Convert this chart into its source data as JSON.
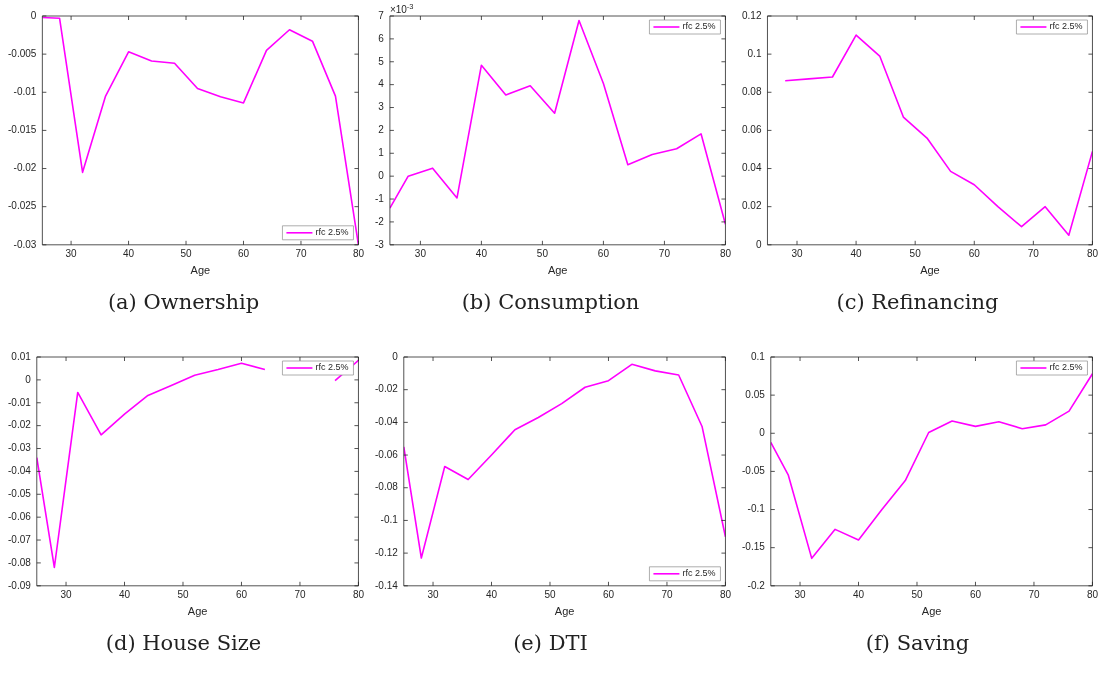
{
  "chart_data": [
    {
      "type": "line",
      "title": "(a)  Ownership",
      "xlabel": "Age",
      "x": [
        25,
        28,
        32,
        36,
        40,
        44,
        48,
        52,
        56,
        60,
        64,
        68,
        72,
        76,
        80
      ],
      "xlim": [
        25,
        80
      ],
      "xticks": [
        30,
        40,
        50,
        60,
        70,
        80
      ],
      "ylim": [
        -0.03,
        0
      ],
      "yticks": [
        -0.03,
        -0.025,
        -0.02,
        -0.015,
        -0.01,
        -0.005,
        0
      ],
      "grid": false,
      "legend": "bottom right",
      "series": [
        {
          "name": "rfc 2.5%",
          "color": "#ff00ff",
          "values": [
            -0.0002,
            -0.0003,
            -0.0205,
            -0.0105,
            -0.0047,
            -0.0059,
            -0.0062,
            -0.0095,
            -0.0106,
            -0.0114,
            -0.0045,
            -0.0018,
            -0.0033,
            -0.0105,
            -0.03
          ]
        }
      ]
    },
    {
      "type": "line",
      "title": "(b)  Consumption",
      "xlabel": "Age",
      "annotations": [
        "×10$^{-3}$"
      ],
      "x": [
        25,
        28,
        32,
        36,
        40,
        44,
        48,
        52,
        56,
        60,
        64,
        68,
        72,
        76,
        80
      ],
      "xlim": [
        25,
        80
      ],
      "xticks": [
        30,
        40,
        50,
        60,
        70,
        80
      ],
      "ylim": [
        -3,
        7
      ],
      "yticks": [
        -3,
        -2,
        -1,
        0,
        1,
        2,
        3,
        4,
        5,
        6,
        7
      ],
      "grid": false,
      "legend": "top right",
      "series": [
        {
          "name": "rfc 2.5%",
          "color": "#ff00ff",
          "values": [
            -1.4,
            0,
            0.35,
            -0.95,
            4.85,
            3.55,
            3.95,
            2.75,
            6.8,
            4.05,
            0.5,
            0.95,
            1.2,
            1.85,
            -2.1
          ]
        }
      ]
    },
    {
      "type": "line",
      "title": "(c)  Refinancing",
      "xlabel": "Age",
      "x": [
        28,
        32,
        36,
        40,
        44,
        48,
        52,
        56,
        60,
        64,
        68,
        72,
        76,
        80
      ],
      "xlim": [
        25,
        80
      ],
      "xticks": [
        30,
        40,
        50,
        60,
        70,
        80
      ],
      "ylim": [
        0,
        0.12
      ],
      "yticks": [
        0,
        0.02,
        0.04,
        0.06,
        0.08,
        0.1,
        0.12
      ],
      "grid": false,
      "legend": "top right",
      "series": [
        {
          "name": "rfc 2.5%",
          "color": "#ff00ff",
          "values": [
            0.086,
            0.087,
            0.088,
            0.11,
            0.099,
            0.067,
            0.056,
            0.0385,
            0.0315,
            0.02,
            0.0095,
            0.02,
            0.005,
            0.049
          ]
        }
      ]
    },
    {
      "type": "line",
      "title": "(d)  House Size",
      "xlabel": "Age",
      "x": [
        25,
        28,
        32,
        36,
        40,
        44,
        48,
        52,
        56,
        60,
        64,
        68,
        72,
        76,
        80
      ],
      "xlim": [
        25,
        80
      ],
      "xticks": [
        30,
        40,
        50,
        60,
        70,
        80
      ],
      "ylim": [
        -0.09,
        0.01
      ],
      "yticks": [
        -0.09,
        -0.08,
        -0.07,
        -0.06,
        -0.05,
        -0.04,
        -0.03,
        -0.02,
        -0.01,
        0,
        0.01
      ],
      "grid": false,
      "legend": "top right",
      "series": [
        {
          "name": "rfc 2.5%",
          "color": "#ff00ff",
          "values": [
            -0.034,
            -0.082,
            -0.0055,
            -0.024,
            -0.015,
            -0.0068,
            -0.0025,
            0.002,
            0.0045,
            0.0073,
            0.0045,
            null,
            null,
            -0.0003,
            0.0085
          ]
        }
      ]
    },
    {
      "type": "line",
      "title": "(e)  DTI",
      "xlabel": "Age",
      "x": [
        25,
        28,
        32,
        36,
        40,
        44,
        48,
        52,
        56,
        60,
        64,
        68,
        72,
        76,
        80
      ],
      "xlim": [
        25,
        80
      ],
      "xticks": [
        30,
        40,
        50,
        60,
        70,
        80
      ],
      "ylim": [
        -0.14,
        0
      ],
      "yticks": [
        -0.14,
        -0.12,
        -0.1,
        -0.08,
        -0.06,
        -0.04,
        -0.02,
        0
      ],
      "grid": false,
      "legend": "bottom right",
      "series": [
        {
          "name": "rfc 2.5%",
          "color": "#ff00ff",
          "values": [
            -0.055,
            -0.123,
            -0.067,
            -0.075,
            -0.06,
            -0.0445,
            -0.037,
            -0.0285,
            -0.0185,
            -0.0145,
            -0.0045,
            -0.0085,
            -0.011,
            -0.0425,
            -0.11
          ]
        }
      ]
    },
    {
      "type": "line",
      "title": "(f)  Saving",
      "xlabel": "Age",
      "x": [
        25,
        28,
        32,
        36,
        40,
        44,
        48,
        52,
        56,
        60,
        64,
        68,
        72,
        76,
        80
      ],
      "xlim": [
        25,
        80
      ],
      "xticks": [
        30,
        40,
        50,
        60,
        70,
        80
      ],
      "ylim": [
        -0.2,
        0.1
      ],
      "yticks": [
        -0.2,
        -0.15,
        -0.1,
        -0.05,
        0,
        0.05,
        0.1
      ],
      "grid": false,
      "legend": "top right",
      "series": [
        {
          "name": "rfc 2.5%",
          "color": "#ff00ff",
          "values": [
            -0.012,
            -0.055,
            -0.164,
            -0.126,
            -0.14,
            -0.1,
            -0.062,
            0.001,
            0.016,
            0.009,
            0.015,
            0.006,
            0.011,
            0.029,
            0.078
          ]
        }
      ]
    }
  ]
}
